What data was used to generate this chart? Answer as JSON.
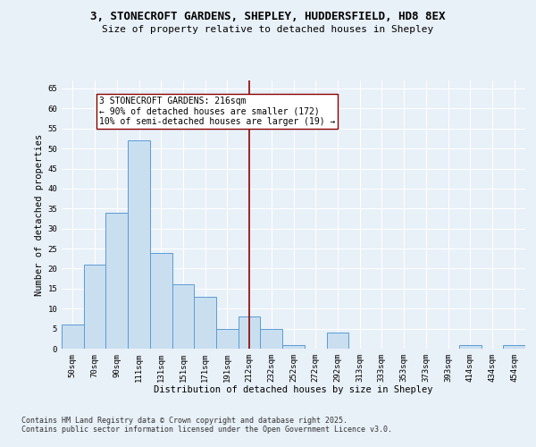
{
  "title_line1": "3, STONECROFT GARDENS, SHEPLEY, HUDDERSFIELD, HD8 8EX",
  "title_line2": "Size of property relative to detached houses in Shepley",
  "xlabel": "Distribution of detached houses by size in Shepley",
  "ylabel": "Number of detached properties",
  "categories": [
    "50sqm",
    "70sqm",
    "90sqm",
    "111sqm",
    "131sqm",
    "151sqm",
    "171sqm",
    "191sqm",
    "212sqm",
    "232sqm",
    "252sqm",
    "272sqm",
    "292sqm",
    "313sqm",
    "333sqm",
    "353sqm",
    "373sqm",
    "393sqm",
    "414sqm",
    "434sqm",
    "454sqm"
  ],
  "values": [
    6,
    21,
    34,
    52,
    24,
    16,
    13,
    5,
    8,
    5,
    1,
    0,
    4,
    0,
    0,
    0,
    0,
    0,
    1,
    0,
    1
  ],
  "bar_face_color": "#c9dff0",
  "bar_edge_color": "#5b9bd5",
  "vertical_line_x": 8,
  "vertical_line_color": "#8b0000",
  "annotation_text": "3 STONECROFT GARDENS: 216sqm\n← 90% of detached houses are smaller (172)\n10% of semi-detached houses are larger (19) →",
  "annotation_box_color": "white",
  "annotation_edge_color": "#8b0000",
  "ylim": [
    0,
    67
  ],
  "yticks": [
    0,
    5,
    10,
    15,
    20,
    25,
    30,
    35,
    40,
    45,
    50,
    55,
    60,
    65
  ],
  "bg_color": "#e8f0f8",
  "plot_bg_color": "#e8f0f8",
  "grid_color": "white",
  "footer_text": "Contains HM Land Registry data © Crown copyright and database right 2025.\nContains public sector information licensed under the Open Government Licence v3.0.",
  "title_fontsize": 9,
  "subtitle_fontsize": 8,
  "axis_label_fontsize": 7.5,
  "tick_fontsize": 6.5,
  "annotation_fontsize": 7,
  "footer_fontsize": 6
}
